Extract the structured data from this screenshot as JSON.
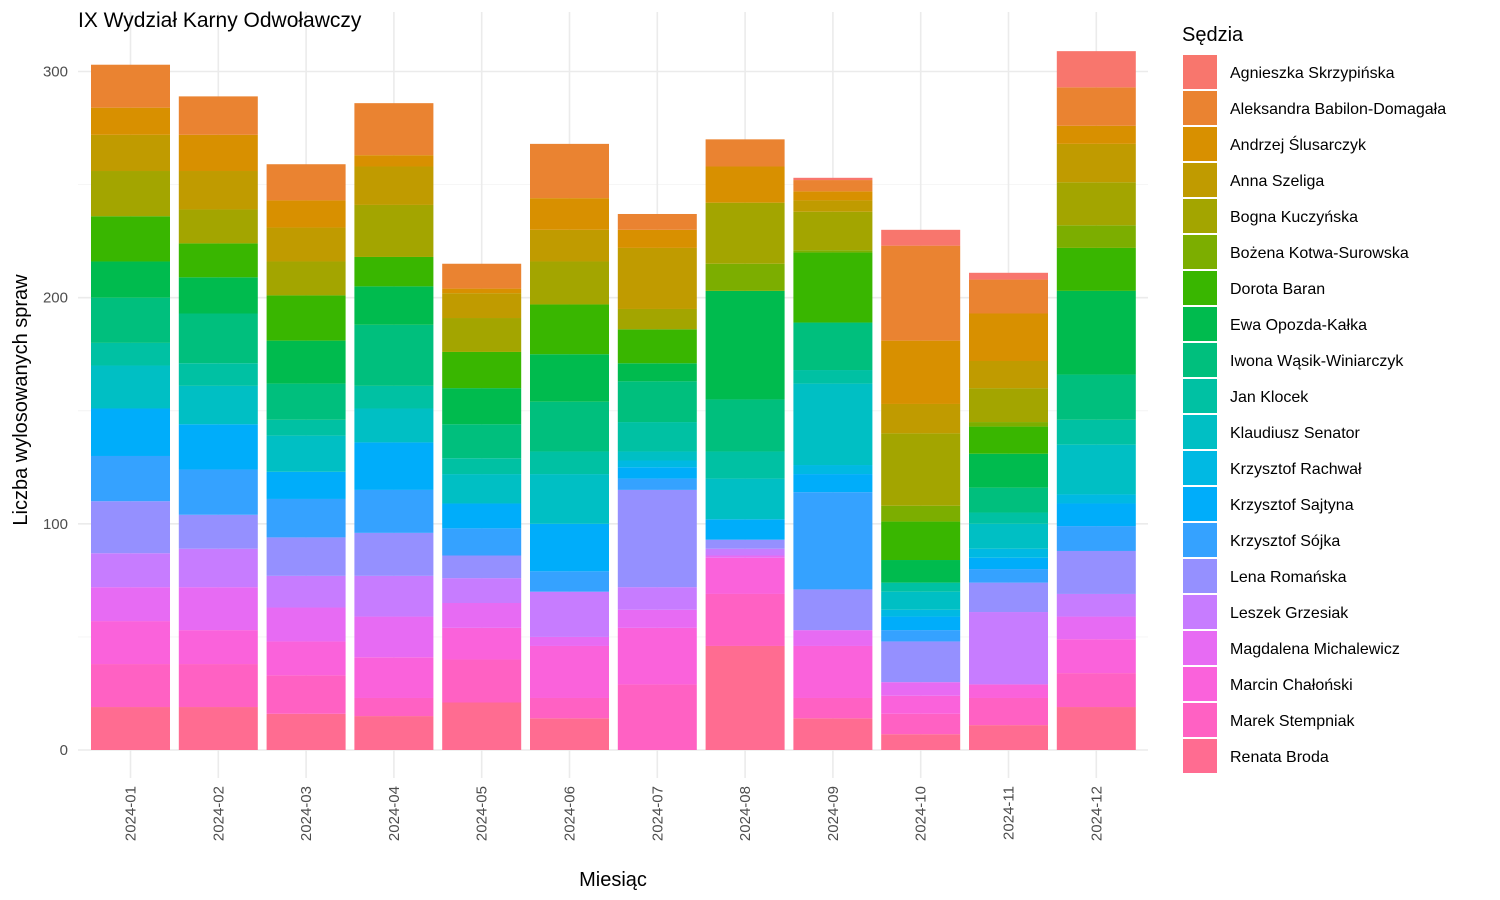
{
  "chart_data": {
    "type": "bar",
    "stacked": true,
    "title": "IX Wydział Karny Odwoławczy",
    "xlabel": "Miesiąc",
    "ylabel": "Liczba wylosowanych spraw",
    "ylim": [
      0,
      312
    ],
    "yticks": [
      0,
      100,
      200,
      300
    ],
    "grid": true,
    "legend_position": "right",
    "legend_title": "Sędzia",
    "categories": [
      "2024-01",
      "2024-02",
      "2024-03",
      "2024-04",
      "2024-05",
      "2024-06",
      "2024-07",
      "2024-08",
      "2024-09",
      "2024-10",
      "2024-11",
      "2024-12"
    ],
    "series": [
      {
        "name": "Agnieszka Skrzypińska",
        "color": "#F8766D",
        "values": [
          0,
          0,
          0,
          0,
          0,
          0,
          0,
          0,
          1,
          7,
          3,
          16
        ]
      },
      {
        "name": "Aleksandra Babilon-Domagała",
        "color": "#EA8331",
        "values": [
          19,
          17,
          16,
          23,
          11,
          24,
          7,
          12,
          5,
          42,
          15,
          17
        ]
      },
      {
        "name": "Andrzej Ślusarczyk",
        "color": "#D89000",
        "values": [
          12,
          16,
          12,
          5,
          2,
          14,
          8,
          16,
          4,
          28,
          21,
          8
        ]
      },
      {
        "name": "Anna Szeliga",
        "color": "#C09B00",
        "values": [
          16,
          17,
          15,
          17,
          11,
          14,
          27,
          0,
          5,
          13,
          12,
          17
        ]
      },
      {
        "name": "Bogna Kuczyńska",
        "color": "#A3A500",
        "values": [
          20,
          15,
          15,
          23,
          15,
          19,
          9,
          27,
          17,
          32,
          15,
          19
        ]
      },
      {
        "name": "Bożena Kotwa-Surowska",
        "color": "#7CAE00",
        "values": [
          0,
          0,
          0,
          0,
          0,
          0,
          0,
          12,
          1,
          7,
          2,
          10
        ]
      },
      {
        "name": "Dorota Baran",
        "color": "#39B600",
        "values": [
          20,
          15,
          20,
          13,
          16,
          22,
          15,
          0,
          31,
          17,
          12,
          19
        ]
      },
      {
        "name": "Ewa Opozda-Kałka",
        "color": "#00BB4E",
        "values": [
          16,
          16,
          19,
          17,
          16,
          21,
          8,
          48,
          0,
          10,
          15,
          37
        ]
      },
      {
        "name": "Iwona Wąsik-Winiarczyk",
        "color": "#00BF7D",
        "values": [
          20,
          22,
          16,
          27,
          15,
          22,
          18,
          23,
          21,
          0,
          11,
          20
        ]
      },
      {
        "name": "Jan Klocek",
        "color": "#00C1A3",
        "values": [
          10,
          10,
          7,
          10,
          7,
          10,
          13,
          12,
          6,
          4,
          5,
          11
        ]
      },
      {
        "name": "Klaudiusz Senator",
        "color": "#00BFC4",
        "values": [
          19,
          17,
          16,
          15,
          13,
          22,
          4,
          18,
          36,
          8,
          11,
          22
        ]
      },
      {
        "name": "Krzysztof Rachwał",
        "color": "#00B9E3",
        "values": [
          0,
          0,
          0,
          0,
          0,
          0,
          3,
          0,
          4,
          3,
          4,
          4
        ]
      },
      {
        "name": "Krzysztof Sajtyna",
        "color": "#00ADFA",
        "values": [
          21,
          20,
          12,
          21,
          11,
          21,
          5,
          9,
          8,
          6,
          5,
          10
        ]
      },
      {
        "name": "Krzysztof Sójka",
        "color": "#35A2FF",
        "values": [
          20,
          20,
          17,
          19,
          12,
          9,
          5,
          0,
          43,
          5,
          6,
          11
        ]
      },
      {
        "name": "Lena Romańska",
        "color": "#9590FF",
        "values": [
          23,
          15,
          17,
          19,
          10,
          0,
          43,
          4,
          18,
          18,
          13,
          19
        ]
      },
      {
        "name": "Leszek Grzesiak",
        "color": "#C77CFF",
        "values": [
          15,
          17,
          14,
          18,
          11,
          20,
          10,
          3,
          0,
          0,
          32,
          10
        ]
      },
      {
        "name": "Magdalena Michalewicz",
        "color": "#E76BF3",
        "values": [
          15,
          19,
          15,
          18,
          11,
          4,
          8,
          1,
          7,
          6,
          0,
          10
        ]
      },
      {
        "name": "Marcin Chałoński",
        "color": "#FA62DB",
        "values": [
          19,
          15,
          15,
          18,
          14,
          23,
          25,
          16,
          23,
          8,
          6,
          15
        ]
      },
      {
        "name": "Marek Stempniak",
        "color": "#FF61C3",
        "values": [
          19,
          19,
          17,
          8,
          19,
          9,
          29,
          23,
          9,
          9,
          12,
          15
        ]
      },
      {
        "name": "Renata Broda",
        "color": "#FF6C91",
        "values": [
          19,
          19,
          16,
          15,
          21,
          14,
          0,
          46,
          14,
          7,
          11,
          19
        ]
      }
    ]
  }
}
